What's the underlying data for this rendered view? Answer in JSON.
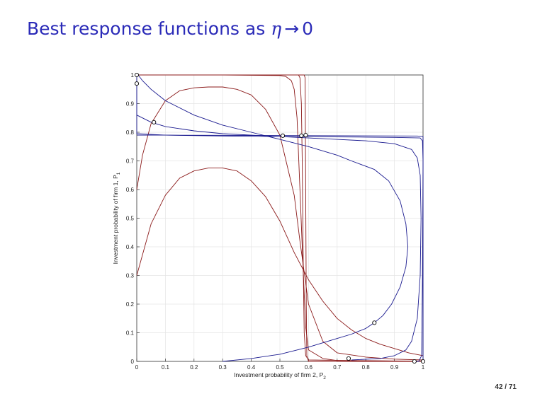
{
  "slide": {
    "title_prefix": "Best response functions as",
    "title_symbol": "η",
    "title_arrow": "→",
    "title_limit": "0",
    "page_current": "42",
    "page_total": "71"
  },
  "chart_data": {
    "type": "line",
    "title": "",
    "xlabel": "Investment probability of firm 2, P",
    "xlabel_sub": "2",
    "ylabel": "Investment probability of firm 1, P",
    "ylabel_sub": "1",
    "xlim": [
      0,
      1
    ],
    "ylim": [
      0,
      1
    ],
    "grid": true,
    "x_ticks": [
      0,
      0.1,
      0.2,
      0.3,
      0.4,
      0.5,
      0.6,
      0.7,
      0.8,
      0.9,
      1
    ],
    "x_tick_labels": [
      "0",
      "0.1",
      "0.2",
      "0.3",
      "0.4",
      "0.5",
      "0.6",
      "0.7",
      "0.8",
      "0.9",
      "1"
    ],
    "y_ticks": [
      0,
      0.1,
      0.2,
      0.3,
      0.4,
      0.5,
      0.6,
      0.7,
      0.8,
      0.9,
      1
    ],
    "y_tick_labels": [
      "0",
      "0.1",
      "0.2",
      "0.3",
      "0.4",
      "0.5",
      "0.6",
      "0.7",
      "0.8",
      "0.9",
      "1"
    ],
    "colors": {
      "firm1_best_response": "#8b1a1a",
      "firm2_best_response": "#1a1a8f",
      "equilibrium_marker": "#000000"
    },
    "series": [
      {
        "group": "firm1_best_response",
        "points": [
          [
            0,
            0.3
          ],
          [
            0.05,
            0.48
          ],
          [
            0.1,
            0.58
          ],
          [
            0.15,
            0.64
          ],
          [
            0.2,
            0.665
          ],
          [
            0.25,
            0.675
          ],
          [
            0.3,
            0.675
          ],
          [
            0.35,
            0.665
          ],
          [
            0.4,
            0.63
          ],
          [
            0.45,
            0.575
          ],
          [
            0.5,
            0.49
          ],
          [
            0.55,
            0.38
          ],
          [
            0.6,
            0.285
          ],
          [
            0.65,
            0.21
          ],
          [
            0.7,
            0.15
          ],
          [
            0.75,
            0.11
          ],
          [
            0.8,
            0.08
          ],
          [
            0.85,
            0.06
          ],
          [
            0.9,
            0.045
          ],
          [
            0.95,
            0.03
          ],
          [
            1,
            0.02
          ]
        ]
      },
      {
        "group": "firm1_best_response",
        "points": [
          [
            0,
            0.6
          ],
          [
            0.02,
            0.72
          ],
          [
            0.05,
            0.83
          ],
          [
            0.1,
            0.91
          ],
          [
            0.15,
            0.945
          ],
          [
            0.2,
            0.955
          ],
          [
            0.25,
            0.958
          ],
          [
            0.3,
            0.958
          ],
          [
            0.35,
            0.95
          ],
          [
            0.4,
            0.93
          ],
          [
            0.45,
            0.88
          ],
          [
            0.5,
            0.79
          ],
          [
            0.55,
            0.58
          ],
          [
            0.57,
            0.42
          ],
          [
            0.6,
            0.2
          ],
          [
            0.65,
            0.07
          ],
          [
            0.7,
            0.03
          ],
          [
            0.8,
            0.015
          ],
          [
            0.9,
            0.008
          ],
          [
            1,
            0.005
          ]
        ]
      },
      {
        "group": "firm1_best_response",
        "points": [
          [
            0,
            1
          ],
          [
            0.3,
            1
          ],
          [
            0.5,
            0.998
          ],
          [
            0.52,
            0.995
          ],
          [
            0.54,
            0.98
          ],
          [
            0.55,
            0.95
          ],
          [
            0.56,
            0.85
          ],
          [
            0.57,
            0.6
          ],
          [
            0.58,
            0.35
          ],
          [
            0.59,
            0.12
          ],
          [
            0.6,
            0.04
          ],
          [
            0.65,
            0.01
          ],
          [
            0.7,
            0.003
          ],
          [
            1,
            0.001
          ]
        ]
      },
      {
        "group": "firm1_best_response",
        "points": [
          [
            0,
            1
          ],
          [
            0.5,
            1
          ],
          [
            0.565,
            1
          ],
          [
            0.57,
            0.99
          ],
          [
            0.575,
            0.9
          ],
          [
            0.578,
            0.7
          ],
          [
            0.582,
            0.3
          ],
          [
            0.585,
            0.1
          ],
          [
            0.59,
            0.02
          ],
          [
            0.6,
            0.005
          ],
          [
            1,
            0
          ]
        ]
      },
      {
        "group": "firm1_best_response",
        "points": [
          [
            0,
            1
          ],
          [
            0.5,
            1
          ],
          [
            0.585,
            1
          ],
          [
            0.588,
            0.99
          ],
          [
            0.59,
            0.6
          ],
          [
            0.592,
            0.2
          ],
          [
            0.594,
            0.02
          ],
          [
            0.6,
            0
          ],
          [
            1,
            0
          ]
        ]
      },
      {
        "group": "firm2_best_response",
        "points": [
          [
            0.3,
            0
          ],
          [
            0.4,
            0.01
          ],
          [
            0.5,
            0.025
          ],
          [
            0.6,
            0.05
          ],
          [
            0.7,
            0.08
          ],
          [
            0.75,
            0.095
          ],
          [
            0.8,
            0.115
          ],
          [
            0.83,
            0.135
          ],
          [
            0.86,
            0.16
          ],
          [
            0.89,
            0.2
          ],
          [
            0.92,
            0.26
          ],
          [
            0.94,
            0.33
          ],
          [
            0.947,
            0.4
          ],
          [
            0.94,
            0.48
          ],
          [
            0.92,
            0.56
          ],
          [
            0.88,
            0.63
          ],
          [
            0.83,
            0.67
          ],
          [
            0.75,
            0.7
          ],
          [
            0.7,
            0.72
          ],
          [
            0.6,
            0.75
          ],
          [
            0.5,
            0.775
          ],
          [
            0.4,
            0.8
          ],
          [
            0.3,
            0.825
          ],
          [
            0.2,
            0.86
          ],
          [
            0.1,
            0.91
          ],
          [
            0.05,
            0.95
          ],
          [
            0.02,
            0.98
          ],
          [
            0.005,
            1
          ]
        ]
      },
      {
        "group": "firm2_best_response",
        "points": [
          [
            0.75,
            0.005
          ],
          [
            0.85,
            0.01
          ],
          [
            0.9,
            0.02
          ],
          [
            0.94,
            0.04
          ],
          [
            0.96,
            0.07
          ],
          [
            0.98,
            0.15
          ],
          [
            0.99,
            0.3
          ],
          [
            0.993,
            0.5
          ],
          [
            0.99,
            0.65
          ],
          [
            0.98,
            0.71
          ],
          [
            0.96,
            0.74
          ],
          [
            0.9,
            0.76
          ],
          [
            0.8,
            0.77
          ],
          [
            0.7,
            0.775
          ],
          [
            0.6,
            0.78
          ],
          [
            0.5,
            0.785
          ],
          [
            0.4,
            0.79
          ],
          [
            0.3,
            0.795
          ],
          [
            0.2,
            0.805
          ],
          [
            0.1,
            0.82
          ],
          [
            0.05,
            0.835
          ],
          [
            0,
            0.86
          ],
          [
            0,
            1
          ]
        ]
      },
      {
        "group": "firm2_best_response",
        "points": [
          [
            0.97,
            0
          ],
          [
            0.985,
            0
          ],
          [
            0.995,
            0.02
          ],
          [
            0.998,
            0.3
          ],
          [
            1,
            0.7
          ],
          [
            0.998,
            0.77
          ],
          [
            0.99,
            0.78
          ],
          [
            0.9,
            0.782
          ],
          [
            0.8,
            0.783
          ],
          [
            0.5,
            0.785
          ],
          [
            0.3,
            0.787
          ],
          [
            0.1,
            0.79
          ],
          [
            0,
            0.795
          ],
          [
            0,
            0.97
          ]
        ]
      },
      {
        "group": "firm2_best_response",
        "points": [
          [
            1,
            0
          ],
          [
            1,
            0.5
          ],
          [
            1,
            0.785
          ],
          [
            0.98,
            0.787
          ],
          [
            0.7,
            0.788
          ],
          [
            0.4,
            0.789
          ],
          [
            0.1,
            0.79
          ],
          [
            0,
            0.79
          ]
        ]
      }
    ],
    "equilibria": [
      [
        0,
        1
      ],
      [
        0,
        0.97
      ],
      [
        0.06,
        0.835
      ],
      [
        0.51,
        0.788
      ],
      [
        0.575,
        0.788
      ],
      [
        0.59,
        0.79
      ],
      [
        0.83,
        0.135
      ],
      [
        0.74,
        0.01
      ],
      [
        0.97,
        0
      ],
      [
        1,
        0
      ]
    ]
  }
}
